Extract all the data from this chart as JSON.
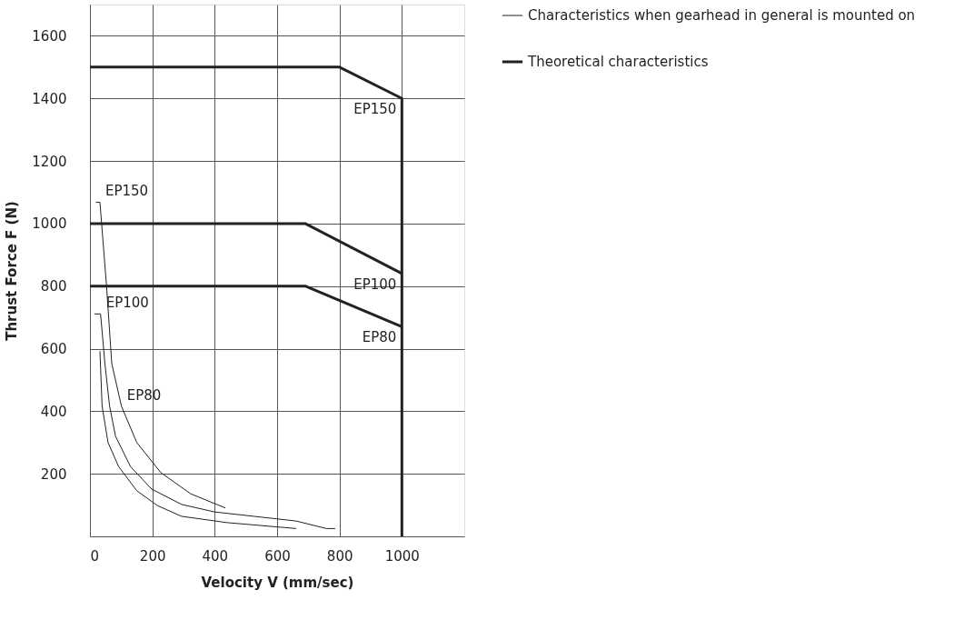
{
  "chart_data": {
    "type": "line",
    "xlabel": "Velocity V (mm/sec)",
    "ylabel": "Thrust Force F (N)",
    "xlim": [
      0,
      1200
    ],
    "ylim": [
      0,
      1700
    ],
    "xticks": [
      0,
      200,
      400,
      600,
      800,
      {
        "value": 1000,
        "label": "1000"
      }
    ],
    "yticks": [
      200,
      400,
      600,
      800,
      {
        "value": 1000,
        "label": "1000"
      },
      {
        "value": 1200,
        "label": "1200"
      },
      {
        "value": 1400,
        "label": "1400"
      },
      {
        "value": 1600,
        "label": "1600"
      }
    ],
    "grid": true,
    "legend": "right",
    "series": [
      {
        "name": "Characteristics when gearhead in general is mounted on",
        "color": "#222222",
        "x": [
          19,
          32,
          53,
          70,
          101,
          150,
          227,
          323,
          434
        ],
        "values": [
          1068,
          1068,
          803,
          552,
          416,
          300,
          204,
          136,
          91
        ]
      },
      {
        "color": "#222222",
        "x": [
          14,
          34,
          48,
          63,
          82,
          130,
          198,
          294,
          400,
          661,
          758,
          786
        ],
        "values": [
          711,
          711,
          552,
          416,
          320,
          223,
          151,
          102,
          78,
          49,
          25,
          25
        ]
      },
      {
        "color": "#222222",
        "x": [
          32,
          39,
          58,
          92,
          150,
          217,
          294,
          439,
          661
        ],
        "values": [
          592,
          416,
          300,
          223,
          146,
          98,
          64,
          44,
          25
        ]
      },
      {
        "name": "Theoretical characteristics",
        "color": "#222222",
        "x": [
          0,
          800,
          1000,
          1000
        ],
        "values": [
          1500,
          1500,
          1400,
          0
        ]
      },
      {
        "color": "#222222",
        "x": [
          0,
          690,
          1000
        ],
        "values": [
          1000,
          1000,
          840
        ]
      },
      {
        "color": "#222222",
        "x": [
          0,
          690,
          1000
        ],
        "values": [
          800,
          800,
          670
        ]
      }
    ],
    "annotations": [
      {
        "text": "EP150",
        "x": 1000,
        "y": 1400
      },
      {
        "text": "EP100",
        "x": 1000,
        "y": 840
      },
      {
        "text": "EP80",
        "x": 1000,
        "y": 670
      },
      {
        "text": "EP150",
        "x": 32,
        "y": 1068
      },
      {
        "text": "EP100",
        "x": 34,
        "y": 711
      },
      {
        "text": "EP80",
        "x": 101,
        "y": 416
      }
    ]
  }
}
